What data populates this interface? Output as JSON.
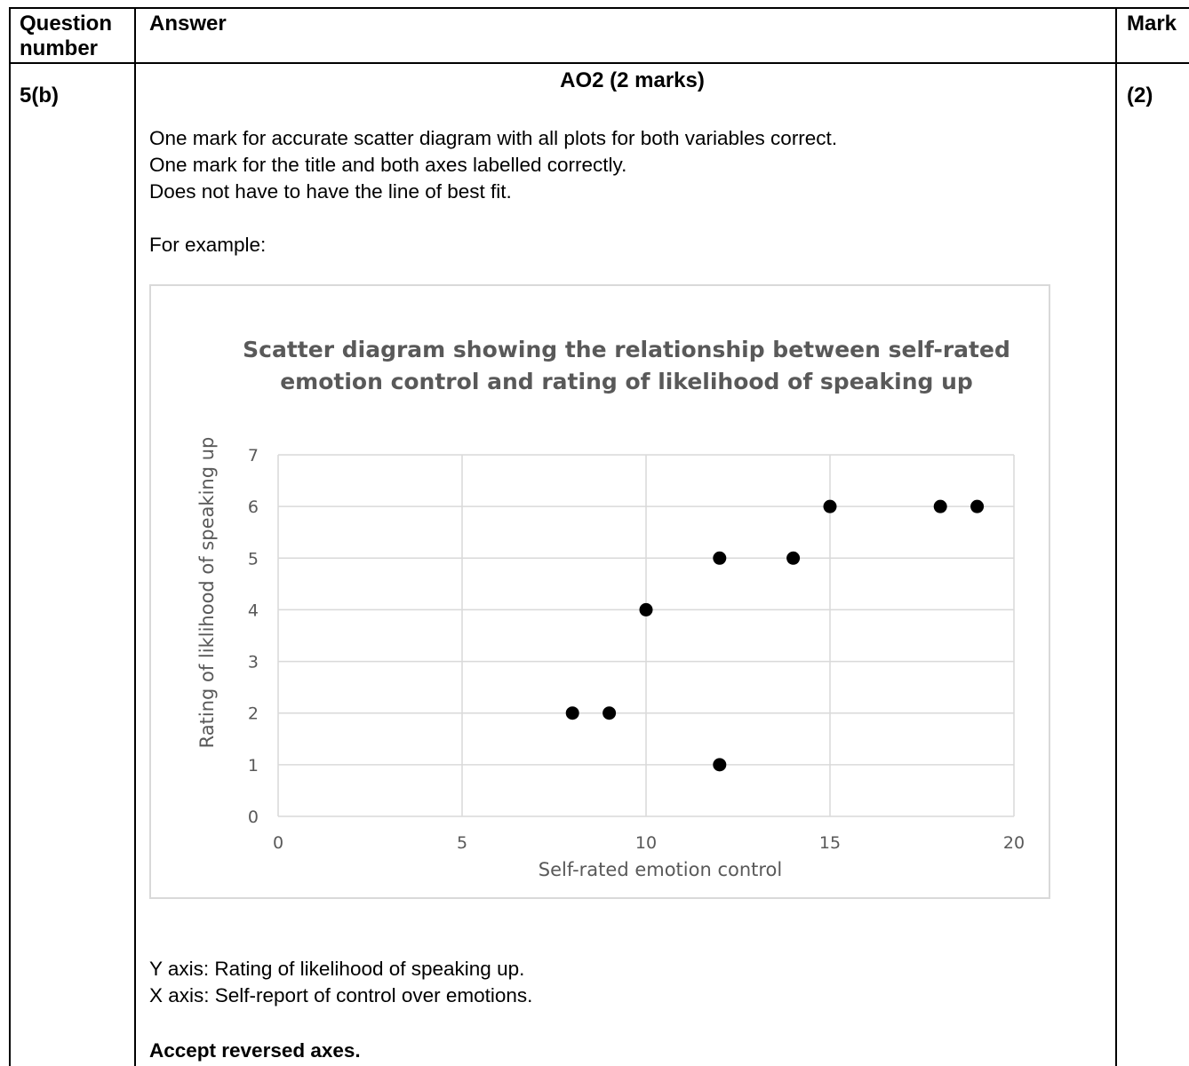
{
  "header": {
    "question_number": [
      "Question",
      "number"
    ],
    "answer": "Answer",
    "mark": "Mark"
  },
  "row": {
    "question_id": "5(b)",
    "ao_heading": "AO2 (2 marks)",
    "mark_value": "(2)",
    "criteria": [
      "One mark for accurate scatter diagram with all plots for both variables correct.",
      "One mark for the title and both axes labelled correctly.",
      "Does not have to have the line of best fit."
    ],
    "example_label": "For example:",
    "axis_notes": [
      "Y axis: Rating of likelihood of speaking up.",
      "X axis: Self-report of control over emotions."
    ],
    "accept_note": "Accept reversed axes."
  },
  "chart_data": {
    "type": "scatter",
    "title": [
      "Scatter diagram showing the relationship between self-rated",
      "emotion control and rating of likelihood of speaking up"
    ],
    "xlabel": "Self-rated emotion control",
    "ylabel": "Rating of liklihood of speaking up",
    "xlim": [
      0,
      20
    ],
    "ylim": [
      0,
      7
    ],
    "xticks": [
      0,
      5,
      10,
      15,
      20
    ],
    "yticks": [
      0,
      1,
      2,
      3,
      4,
      5,
      6,
      7
    ],
    "grid": true,
    "points": [
      {
        "x": 8,
        "y": 2
      },
      {
        "x": 9,
        "y": 2
      },
      {
        "x": 10,
        "y": 4
      },
      {
        "x": 12,
        "y": 5
      },
      {
        "x": 12,
        "y": 1
      },
      {
        "x": 14,
        "y": 5
      },
      {
        "x": 15,
        "y": 6
      },
      {
        "x": 18,
        "y": 6
      },
      {
        "x": 19,
        "y": 6
      }
    ],
    "colors": {
      "marker": "#000000",
      "text": "#595959",
      "grid": "#d9d9d9"
    }
  }
}
